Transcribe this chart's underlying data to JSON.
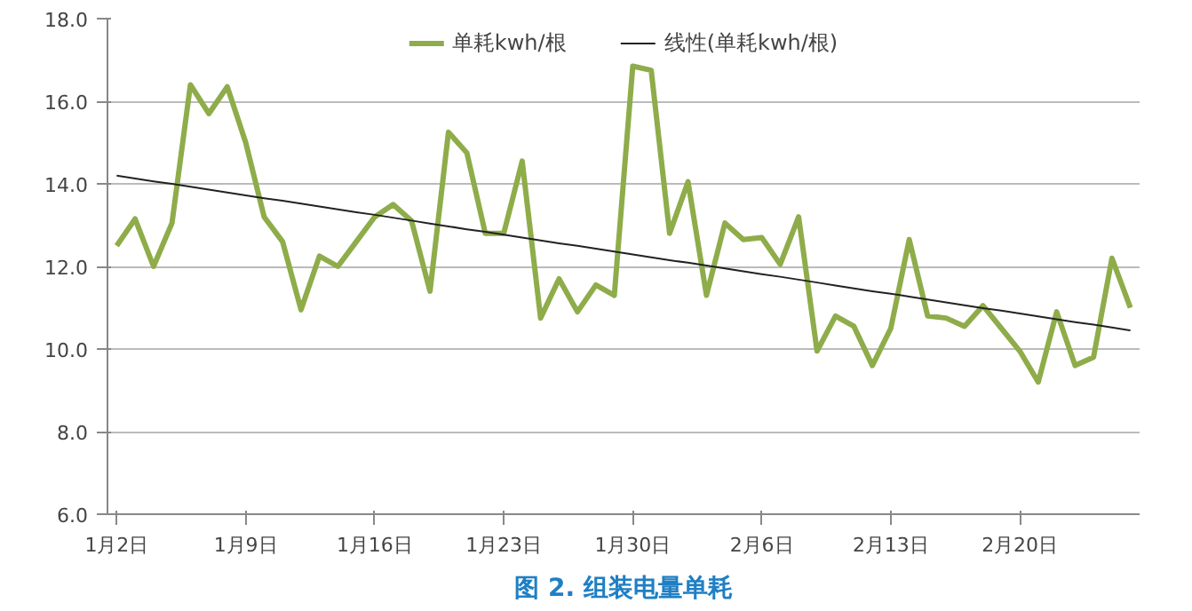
{
  "chart_data": {
    "type": "line",
    "title": "图 2. 组装电量单耗",
    "categories": [
      "1月2日",
      null,
      null,
      null,
      null,
      null,
      null,
      "1月9日",
      null,
      null,
      null,
      null,
      null,
      null,
      "1月16日",
      null,
      null,
      null,
      null,
      null,
      null,
      "1月23日",
      null,
      null,
      null,
      null,
      null,
      null,
      "1月30日",
      null,
      null,
      null,
      null,
      null,
      null,
      "2月6日",
      null,
      null,
      null,
      null,
      null,
      null,
      "2月13日",
      null,
      null,
      null,
      null,
      null,
      null,
      "2月20日",
      null,
      null,
      null,
      null,
      null,
      null
    ],
    "series": [
      {
        "name": "单耗kwh/根",
        "color": "#8fac4a",
        "values": [
          12.5,
          13.15,
          12.0,
          13.05,
          16.4,
          15.7,
          16.35,
          15.0,
          13.2,
          12.6,
          10.95,
          12.25,
          12.0,
          12.6,
          13.2,
          13.5,
          13.1,
          11.4,
          15.25,
          14.75,
          12.8,
          12.8,
          14.55,
          10.75,
          11.7,
          10.9,
          11.55,
          11.3,
          16.85,
          16.75,
          12.8,
          14.05,
          11.3,
          13.05,
          12.65,
          12.7,
          12.05,
          13.2,
          9.95,
          10.8,
          10.55,
          9.6,
          10.5,
          12.65,
          10.8,
          10.75,
          10.55,
          11.05,
          10.5,
          9.95,
          9.2,
          10.9,
          9.6,
          9.8,
          12.2,
          11.0
        ]
      },
      {
        "name": "线性(单耗kwh/根)",
        "color": "#222222",
        "values": [
          14.2,
          14.13,
          14.06,
          14.0,
          13.93,
          13.86,
          13.79,
          13.72,
          13.65,
          13.59,
          13.52,
          13.45,
          13.38,
          13.31,
          13.25,
          13.18,
          13.11,
          13.04,
          12.97,
          12.9,
          12.84,
          12.77,
          12.7,
          12.63,
          12.56,
          12.5,
          12.43,
          12.36,
          12.29,
          12.22,
          12.15,
          12.09,
          12.02,
          11.95,
          11.88,
          11.81,
          11.75,
          11.68,
          11.61,
          11.54,
          11.47,
          11.4,
          11.34,
          11.27,
          11.2,
          11.13,
          11.06,
          10.99,
          10.93,
          10.86,
          10.79,
          10.72,
          10.65,
          10.59,
          10.52,
          10.45
        ]
      }
    ],
    "ylim": [
      6,
      18
    ],
    "yticks": [
      {
        "value": 6,
        "label": "6.0"
      },
      {
        "value": 8,
        "label": "8.0"
      },
      {
        "value": 10,
        "label": "10.0"
      },
      {
        "value": 12,
        "label": "12.0"
      },
      {
        "value": 14,
        "label": "14.0"
      },
      {
        "value": 16,
        "label": "16.0"
      },
      {
        "value": 18,
        "label": "18.0"
      }
    ],
    "grid": "y",
    "legend": "top",
    "marker": "none"
  }
}
